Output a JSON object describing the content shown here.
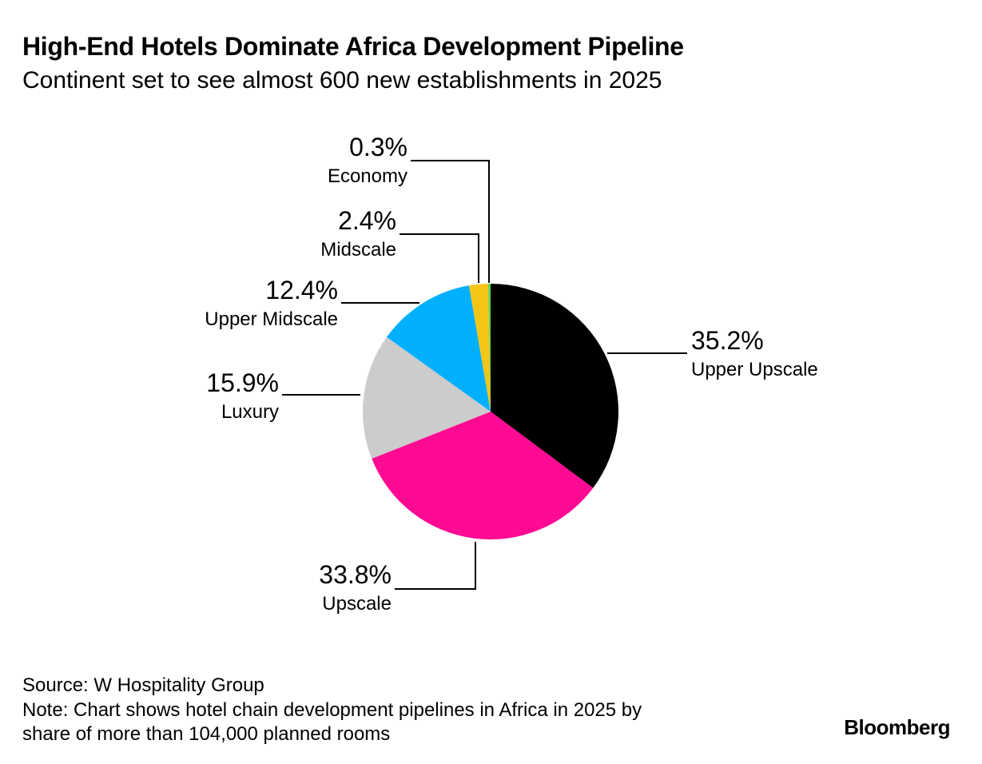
{
  "header": {
    "title": "High-End Hotels Dominate Africa Development Pipeline",
    "subtitle": "Continent set to see almost 600 new establishments in 2025"
  },
  "chart_data": {
    "type": "pie",
    "title": "High-End Hotels Dominate Africa Development Pipeline",
    "subtitle": "Continent set to see almost 600 new establishments in 2025",
    "slices": [
      {
        "name": "Upper Upscale",
        "value": 35.2,
        "label": "35.2%",
        "color": "#000000"
      },
      {
        "name": "Upscale",
        "value": 33.8,
        "label": "33.8%",
        "color": "#ff0a93"
      },
      {
        "name": "Luxury",
        "value": 15.9,
        "label": "15.9%",
        "color": "#cccccc"
      },
      {
        "name": "Upper Midscale",
        "value": 12.4,
        "label": "12.4%",
        "color": "#00b0ff"
      },
      {
        "name": "Midscale",
        "value": 2.4,
        "label": "2.4%",
        "color": "#f5c518"
      },
      {
        "name": "Economy",
        "value": 0.3,
        "label": "0.3%",
        "color": "#5fd35f"
      }
    ],
    "direction": "clockwise",
    "start": "top"
  },
  "footer": {
    "source": "Source: W Hospitality Group",
    "note_line1": "Note: Chart shows hotel chain development pipelines in Africa in 2025 by",
    "note_line2": "share of more than 104,000 planned rooms",
    "brand": "Bloomberg"
  }
}
